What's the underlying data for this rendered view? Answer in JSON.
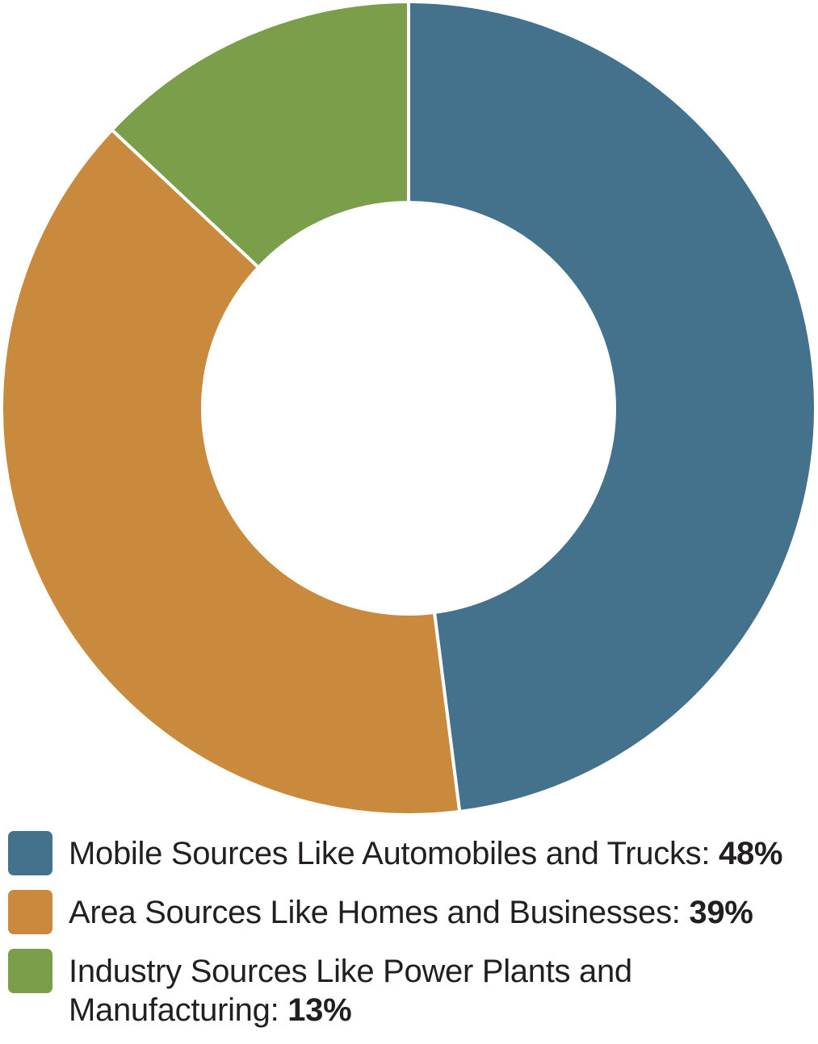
{
  "chart_data": {
    "type": "pie",
    "variant": "donut",
    "slices": [
      {
        "label": "Mobile Sources Like Automobiles and Trucks:",
        "value": 48,
        "value_label": "48%",
        "color": "#44728c"
      },
      {
        "label": "Area Sources Like Homes and Businesses:",
        "value": 39,
        "value_label": "39%",
        "color": "#c98a3d"
      },
      {
        "label": "Industry Sources Like Power Plants and Manufacturing:",
        "value": 13,
        "value_label": "13%",
        "color": "#7a9e4a"
      }
    ],
    "legend_position": "bottom-left"
  }
}
